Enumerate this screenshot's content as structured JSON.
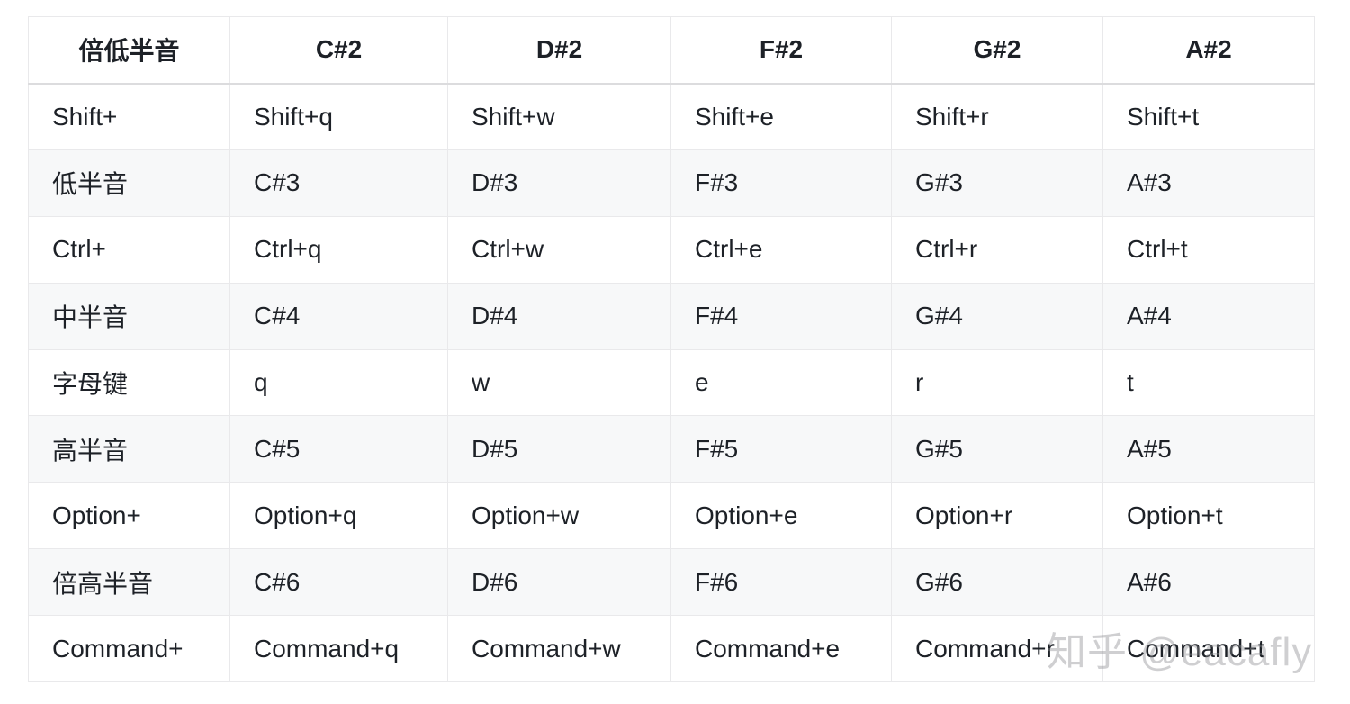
{
  "table": {
    "headers": [
      "倍低半音",
      "C#2",
      "D#2",
      "F#2",
      "G#2",
      "A#2"
    ],
    "rows": [
      [
        "Shift+",
        "Shift+q",
        "Shift+w",
        "Shift+e",
        "Shift+r",
        "Shift+t"
      ],
      [
        "低半音",
        "C#3",
        "D#3",
        "F#3",
        "G#3",
        "A#3"
      ],
      [
        "Ctrl+",
        "Ctrl+q",
        "Ctrl+w",
        "Ctrl+e",
        "Ctrl+r",
        "Ctrl+t"
      ],
      [
        "中半音",
        "C#4",
        "D#4",
        "F#4",
        "G#4",
        "A#4"
      ],
      [
        "字母键",
        "q",
        "w",
        "e",
        "r",
        "t"
      ],
      [
        "高半音",
        "C#5",
        "D#5",
        "F#5",
        "G#5",
        "A#5"
      ],
      [
        "Option+",
        "Option+q",
        "Option+w",
        "Option+e",
        "Option+r",
        "Option+t"
      ],
      [
        "倍高半音",
        "C#6",
        "D#6",
        "F#6",
        "G#6",
        "A#6"
      ],
      [
        "Command+",
        "Command+q",
        "Command+w",
        "Command+e",
        "Command+r",
        "Command+t"
      ]
    ]
  },
  "watermark": {
    "text": "知乎 @eacafly"
  },
  "colors": {
    "stripe": "#f7f8f9",
    "border": "#e9e9eb",
    "header_border": "#dcdcde",
    "text": "#1d2127",
    "watermark": "#8c8c91"
  }
}
